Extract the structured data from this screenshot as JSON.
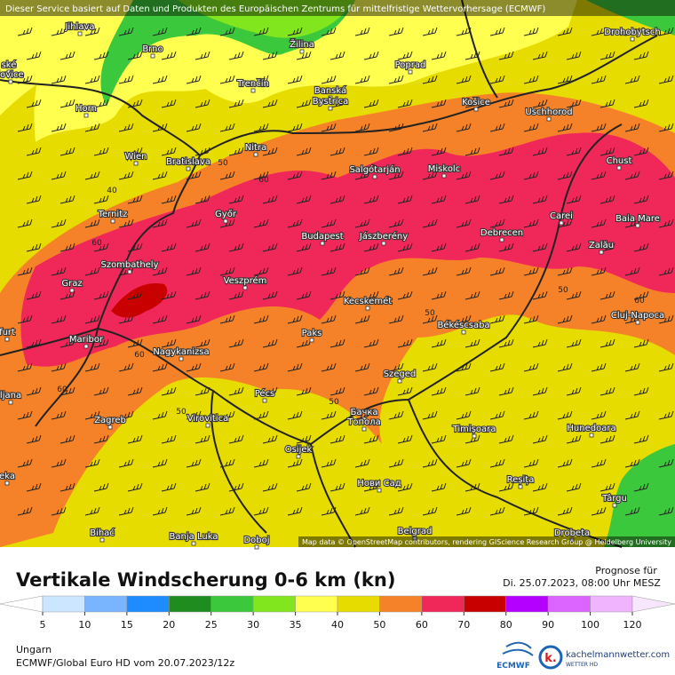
{
  "header": {
    "notice": "Dieser Service basiert auf Daten und Produkten des Europäischen Zentrums für mittelfristige Wettervorhersage (ECMWF)",
    "map_credit": "Map data © OpenStreetMap contributors, rendering GIScience Research Group @ Heidelberg University"
  },
  "cities": [
    "Jihlava",
    "Brno",
    "Žilina",
    "Drohobytsch",
    "Poprad",
    "Trenčín",
    "Banská",
    "Bystrica",
    "Košice",
    "Uschhorod",
    "Horn",
    "Nitra",
    "Wien",
    "Bratislava",
    "Salgótarján",
    "Miskolc",
    "Chust",
    "Ternitz",
    "Győr",
    "Budapest",
    "Jászberény",
    "Debrecen",
    "Carei",
    "Baia Mare",
    "Szombathely",
    "Graz",
    "Veszprém",
    "Zalău",
    "Kecskemét",
    "Cluj-Napoca",
    "Békéscsaba",
    "Maribor",
    "Paks",
    "Nagykanizsa",
    "Szeged",
    "Zagreb",
    "Pécs",
    "Virovitica",
    "Бачка",
    "Топола",
    "Timișoara",
    "Hunedoara",
    "Osijek",
    "Нови Сад",
    "Reșița",
    "Târgu",
    "Bihać",
    "Banja Luka",
    "Doboj",
    "Belgrad",
    "Drobeta",
    "ské",
    "jovice",
    "furt",
    "ljana",
    "eka"
  ],
  "contour_labels": [
    "40",
    "50",
    "60",
    "60",
    "60",
    "60",
    "50",
    "50",
    "50",
    "50",
    "60"
  ],
  "legend": {
    "title": "Vertikale Windscherung 0-6 km (kn)",
    "ticks": [
      5,
      10,
      15,
      20,
      25,
      30,
      35,
      40,
      50,
      60,
      70,
      80,
      90,
      100,
      120
    ],
    "colors": [
      "#ffffff",
      "#cce6ff",
      "#78b4ff",
      "#1e8cff",
      "#1e8c1e",
      "#3cc83c",
      "#82e61e",
      "#ffff50",
      "#e6dc00",
      "#f58228",
      "#f0285a",
      "#c80000",
      "#b400ff",
      "#dc64ff",
      "#f0b4ff",
      "#f8e6ff"
    ]
  },
  "forecast": {
    "label": "Prognose für",
    "time": "Di. 25.07.2023, 08:00 Uhr MESZ"
  },
  "footer": {
    "region": "Ungarn",
    "model": "ECMWF/Global Euro HD vom  20.07.2023/12z",
    "ecmwf": "ECMWF",
    "brand": "kachelmannwetter.com",
    "brand_sub": "WETTER HD"
  }
}
